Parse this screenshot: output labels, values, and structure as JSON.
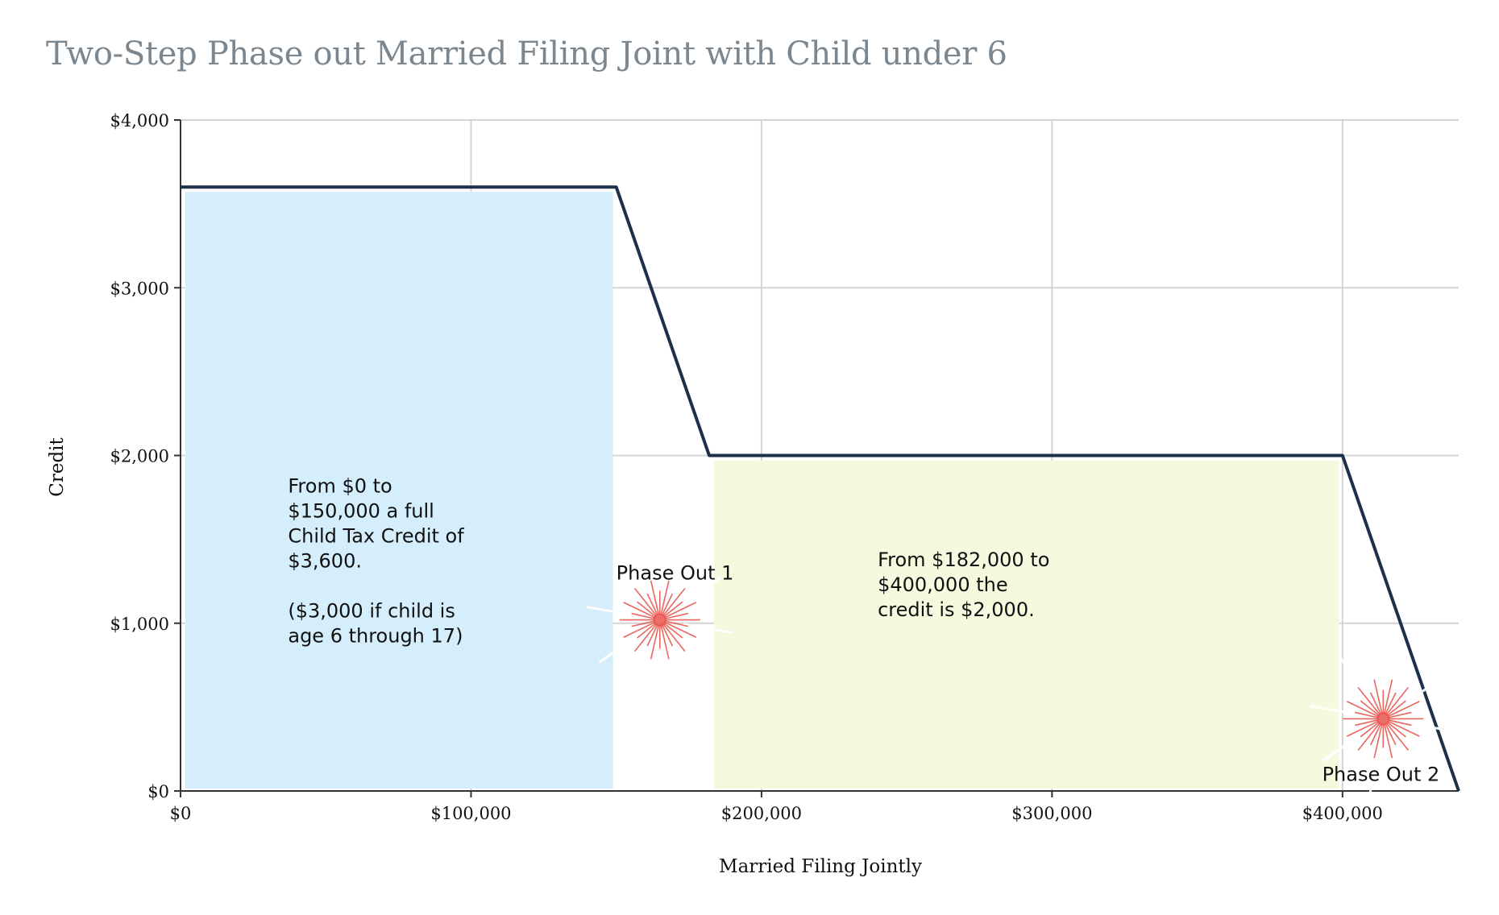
{
  "chart_data": {
    "type": "area",
    "title": "Two-Step Phase out Married Filing Joint with Child under 6",
    "xlabel": "Married Filing Jointly",
    "ylabel": "Credit",
    "xlim": [
      0,
      440000
    ],
    "ylim": [
      0,
      4000
    ],
    "x_ticks": [
      0,
      100000,
      200000,
      300000,
      400000
    ],
    "x_tick_labels": [
      "$0",
      "$100,000",
      "$200,000",
      "$300,000",
      "$400,000"
    ],
    "y_ticks": [
      0,
      1000,
      2000,
      3000,
      4000
    ],
    "y_tick_labels": [
      "$0",
      "$1,000",
      "$2,000",
      "$3,000",
      "$4,000"
    ],
    "grid": true,
    "line_color": "#1c3049",
    "series": [
      {
        "x": [
          0,
          150000,
          182000,
          400000,
          440000
        ],
        "y": [
          3600,
          3600,
          2000,
          2000,
          0
        ]
      }
    ],
    "regions": [
      {
        "x0": 0,
        "x1": 150000,
        "y": 3600,
        "color": "#d4eefb"
      },
      {
        "x0": 182000,
        "x1": 400000,
        "y": 2000,
        "color": "#f6f9de"
      }
    ],
    "annotations": [
      {
        "x": 37000,
        "y": 1780,
        "lines": [
          "From $0 to",
          "$150,000 a full",
          "Child Tax Credit of",
          "$3,600.",
          "",
          "($3,000 if child is",
          "age 6 through 17)"
        ]
      },
      {
        "x": 240000,
        "y": 1340,
        "lines": [
          "From $182,000 to",
          "$400,000 the",
          "credit is $2,000."
        ]
      },
      {
        "x": 150000,
        "y": 1260,
        "lines": [
          "Phase Out 1"
        ]
      },
      {
        "x": 393000,
        "y": 60,
        "lines": [
          "Phase Out 2"
        ]
      }
    ],
    "markers": [
      {
        "x": 165000,
        "y": 1020,
        "color": "#e8564d"
      },
      {
        "x": 414000,
        "y": 430,
        "color": "#e8564d"
      }
    ]
  }
}
